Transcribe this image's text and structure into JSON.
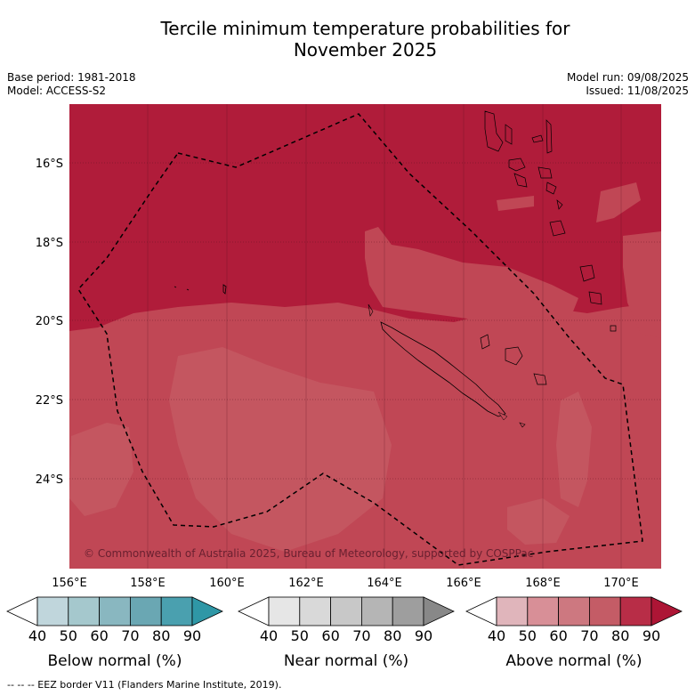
{
  "title_line1": "Tercile minimum temperature probabilities for",
  "title_line2": "November 2025",
  "base_period": "Base period: 1981-2018",
  "model": "Model: ACCESS-S2",
  "model_run": "Model run: 09/08/2025",
  "issued": "Issued: 11/08/2025",
  "copyright": "© Commonwealth of Australia 2025, Bureau of Meteorology, supported by COSPPac",
  "footer": "--  --  -- EEZ border V11 (Flanders Marine Institute, 2019).",
  "map": {
    "lat_labels": [
      "16°S",
      "18°S",
      "20°S",
      "22°S",
      "24°S"
    ],
    "lon_labels": [
      "156°E",
      "158°E",
      "160°E",
      "162°E",
      "164°E",
      "166°E",
      "168°E",
      "170°E"
    ],
    "colors": {
      "dominant": "#b01c3a",
      "secondary": "#c04755",
      "tertiary": "#c45660"
    }
  },
  "colorbars": [
    {
      "title": "Below normal (%)",
      "ticks": [
        "40",
        "50",
        "60",
        "70",
        "80",
        "90"
      ],
      "colors": [
        "#ffffff",
        "#c0d6dc",
        "#a5c8cd",
        "#89b7c0",
        "#6aa7b3",
        "#4aa0af",
        "#2f97a6"
      ]
    },
    {
      "title": "Near normal (%)",
      "ticks": [
        "40",
        "50",
        "60",
        "70",
        "80",
        "90"
      ],
      "colors": [
        "#ffffff",
        "#e6e6e6",
        "#d9d9d9",
        "#c8c8c8",
        "#b5b5b5",
        "#9e9e9e",
        "#888888"
      ]
    },
    {
      "title": "Above normal (%)",
      "ticks": [
        "40",
        "50",
        "60",
        "70",
        "80",
        "90"
      ],
      "colors": [
        "#ffffff",
        "#e0b5bb",
        "#d88f97",
        "#cd7880",
        "#c45c66",
        "#b82d47",
        "#ad1535"
      ]
    }
  ]
}
